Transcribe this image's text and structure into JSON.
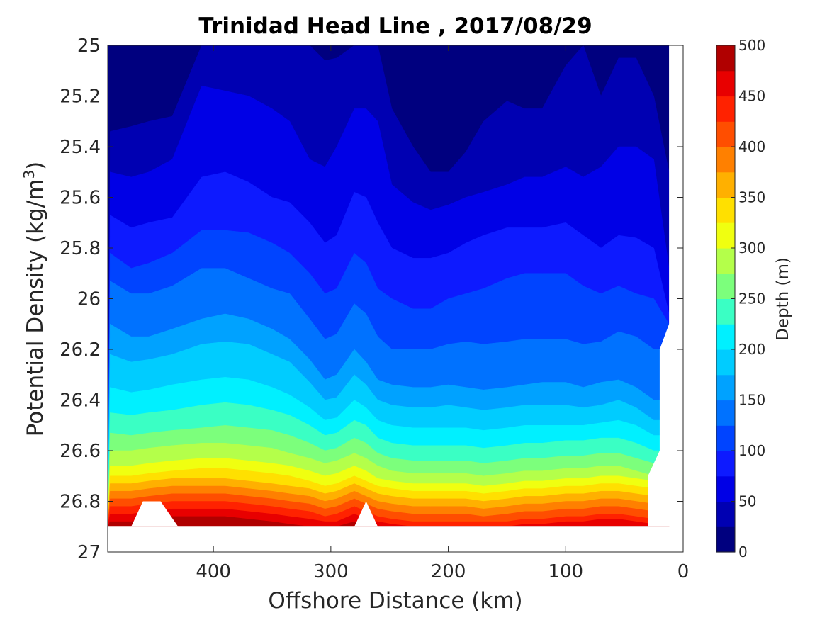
{
  "chart_data": {
    "type": "contourf",
    "title": "Trinidad Head Line , 2017/08/29",
    "xlabel": "Offshore Distance (km)",
    "ylabel_main": "Potential Density (kg/m",
    "ylabel_sup": "3",
    "ylabel_close": ")",
    "colorbar_label": "Depth (m)",
    "x_reversed": true,
    "y_reversed": true,
    "xlim": [
      0,
      490
    ],
    "ylim": [
      25,
      27
    ],
    "x_ticks": [
      400,
      300,
      200,
      100,
      0
    ],
    "x_tick_labels": [
      "400",
      "300",
      "200",
      "100",
      "0"
    ],
    "y_ticks": [
      25,
      25.2,
      25.4,
      25.6,
      25.8,
      26,
      26.2,
      26.4,
      26.6,
      26.8,
      27
    ],
    "y_tick_labels": [
      "25",
      "25.2",
      "25.4",
      "25.6",
      "25.8",
      "26",
      "26.2",
      "26.4",
      "26.6",
      "26.8",
      "27"
    ],
    "colorbar_ticks": [
      0,
      50,
      100,
      150,
      200,
      250,
      300,
      350,
      400,
      450,
      500
    ],
    "colorbar_tick_labels": [
      "0",
      "50",
      "100",
      "150",
      "200",
      "250",
      "300",
      "350",
      "400",
      "450",
      "500"
    ],
    "levels": [
      0,
      25,
      50,
      75,
      100,
      125,
      150,
      175,
      200,
      225,
      250,
      275,
      300,
      325,
      350,
      375,
      400,
      425,
      450,
      475,
      500
    ],
    "level_colors": [
      "#00007f",
      "#0000b2",
      "#0000e6",
      "#0d1aff",
      "#0044ff",
      "#0072ff",
      "#00a2ff",
      "#00ccff",
      "#00f0ff",
      "#3affc4",
      "#7cff7c",
      "#b4ff4a",
      "#f0ff10",
      "#ffe000",
      "#ffb000",
      "#ff8000",
      "#ff4e00",
      "#ff2200",
      "#e80000",
      "#b00000"
    ],
    "x": [
      488,
      470,
      455,
      435,
      410,
      390,
      370,
      350,
      335,
      318,
      305,
      295,
      280,
      270,
      260,
      248,
      230,
      215,
      200,
      185,
      170,
      150,
      135,
      120,
      100,
      85,
      70,
      55,
      40,
      25,
      12
    ],
    "isopycnal_depth_contours": [
      {
        "level": 25,
        "sigma": [
          25.34,
          25.32,
          25.3,
          25.28,
          25.0,
          25.0,
          25.0,
          25.0,
          25.0,
          25.0,
          25.06,
          25.05,
          25.0,
          25.0,
          25.0,
          25.25,
          25.4,
          25.5,
          25.5,
          25.42,
          25.3,
          25.22,
          25.25,
          25.25,
          25.08,
          25.0,
          25.2,
          25.05,
          25.05,
          25.2,
          25.5
        ]
      },
      {
        "level": 50,
        "sigma": [
          25.5,
          25.52,
          25.5,
          25.45,
          25.16,
          25.18,
          25.2,
          25.25,
          25.3,
          25.45,
          25.48,
          25.4,
          25.25,
          25.25,
          25.3,
          25.55,
          25.62,
          25.65,
          25.63,
          25.6,
          25.58,
          25.55,
          25.52,
          25.52,
          25.48,
          25.52,
          25.48,
          25.4,
          25.4,
          25.45,
          25.88
        ]
      },
      {
        "level": 75,
        "sigma": [
          25.67,
          25.72,
          25.7,
          25.68,
          25.52,
          25.5,
          25.54,
          25.6,
          25.62,
          25.7,
          25.78,
          25.75,
          25.58,
          25.6,
          25.7,
          25.8,
          25.84,
          25.84,
          25.82,
          25.78,
          25.75,
          25.72,
          25.72,
          25.72,
          25.7,
          25.75,
          25.8,
          25.75,
          25.76,
          25.8,
          26.06
        ]
      },
      {
        "level": 100,
        "sigma": [
          25.82,
          25.88,
          25.86,
          25.82,
          25.73,
          25.73,
          25.74,
          25.78,
          25.82,
          25.9,
          25.98,
          25.96,
          25.82,
          25.86,
          25.96,
          26.0,
          26.04,
          26.04,
          26.0,
          25.98,
          25.96,
          25.92,
          25.9,
          25.9,
          25.9,
          25.95,
          25.98,
          25.95,
          25.98,
          26.0,
          26.1
        ]
      },
      {
        "level": 125,
        "sigma": [
          25.93,
          25.98,
          25.98,
          25.95,
          25.88,
          25.88,
          25.92,
          25.96,
          25.98,
          26.08,
          26.16,
          26.14,
          26.02,
          26.06,
          26.15,
          26.2,
          26.2,
          26.2,
          26.18,
          26.17,
          26.18,
          26.17,
          26.16,
          26.16,
          26.16,
          26.18,
          26.17,
          26.13,
          26.15,
          26.2,
          26.2
        ]
      },
      {
        "level": 150,
        "sigma": [
          26.1,
          26.15,
          26.15,
          26.12,
          26.08,
          26.06,
          26.08,
          26.12,
          26.16,
          26.24,
          26.32,
          26.3,
          26.2,
          26.25,
          26.32,
          26.34,
          26.35,
          26.35,
          26.34,
          26.35,
          26.36,
          26.35,
          26.34,
          26.33,
          26.33,
          26.35,
          26.33,
          26.32,
          26.35,
          26.4,
          26.4
        ]
      },
      {
        "level": 175,
        "sigma": [
          26.22,
          26.25,
          26.24,
          26.22,
          26.18,
          26.17,
          26.18,
          26.22,
          26.25,
          26.33,
          26.4,
          26.39,
          26.3,
          26.34,
          26.4,
          26.42,
          26.43,
          26.43,
          26.42,
          26.43,
          26.44,
          26.43,
          26.42,
          26.42,
          26.42,
          26.43,
          26.42,
          26.4,
          26.43,
          26.48,
          26.48
        ]
      },
      {
        "level": 200,
        "sigma": [
          26.35,
          26.37,
          26.36,
          26.34,
          26.32,
          26.31,
          26.32,
          26.35,
          26.38,
          26.43,
          26.48,
          26.47,
          26.4,
          26.43,
          26.48,
          26.5,
          26.51,
          26.51,
          26.51,
          26.51,
          26.52,
          26.51,
          26.5,
          26.5,
          26.5,
          26.5,
          26.49,
          26.48,
          26.5,
          26.54,
          26.54
        ]
      },
      {
        "level": 225,
        "sigma": [
          26.45,
          26.46,
          26.45,
          26.44,
          26.42,
          26.41,
          26.42,
          26.44,
          26.46,
          26.5,
          26.54,
          26.53,
          26.48,
          26.5,
          26.55,
          26.57,
          26.58,
          26.58,
          26.58,
          26.58,
          26.59,
          26.58,
          26.57,
          26.57,
          26.56,
          26.56,
          26.55,
          26.55,
          26.57,
          26.6,
          26.6
        ]
      },
      {
        "level": 250,
        "sigma": [
          26.53,
          26.54,
          26.53,
          26.52,
          26.51,
          26.5,
          26.51,
          26.52,
          26.54,
          26.57,
          26.6,
          26.59,
          26.55,
          26.57,
          26.61,
          26.63,
          26.64,
          26.64,
          26.64,
          26.64,
          26.65,
          26.64,
          26.63,
          26.63,
          26.62,
          26.62,
          26.61,
          26.61,
          26.63,
          26.65,
          26.65
        ]
      },
      {
        "level": 275,
        "sigma": [
          26.6,
          26.6,
          26.59,
          26.58,
          26.57,
          26.57,
          26.58,
          26.59,
          26.61,
          26.63,
          26.65,
          26.64,
          26.61,
          26.63,
          26.66,
          26.68,
          26.69,
          26.69,
          26.69,
          26.69,
          26.7,
          26.69,
          26.68,
          26.68,
          26.67,
          26.67,
          26.66,
          26.66,
          26.68,
          26.7,
          26.7
        ]
      },
      {
        "level": 300,
        "sigma": [
          26.66,
          26.66,
          26.65,
          26.64,
          26.63,
          26.63,
          26.64,
          26.65,
          26.66,
          26.68,
          26.7,
          26.69,
          26.66,
          26.68,
          26.71,
          26.72,
          26.73,
          26.73,
          26.73,
          26.73,
          26.74,
          26.73,
          26.72,
          26.72,
          26.71,
          26.71,
          26.7,
          26.7,
          26.71,
          26.72,
          26.72
        ]
      },
      {
        "level": 325,
        "sigma": [
          26.7,
          26.7,
          26.69,
          26.68,
          26.67,
          26.67,
          26.68,
          26.69,
          26.7,
          26.72,
          26.74,
          26.73,
          26.7,
          26.72,
          26.74,
          26.75,
          26.76,
          26.76,
          26.76,
          26.76,
          26.77,
          26.76,
          26.75,
          26.75,
          26.74,
          26.74,
          26.73,
          26.73,
          26.74,
          26.75,
          26.75
        ]
      },
      {
        "level": 350,
        "sigma": [
          26.73,
          26.73,
          26.72,
          26.71,
          26.71,
          26.71,
          26.72,
          26.73,
          26.74,
          26.75,
          26.77,
          26.76,
          26.73,
          26.75,
          26.77,
          26.78,
          26.79,
          26.79,
          26.79,
          26.79,
          26.8,
          26.79,
          26.78,
          26.78,
          26.77,
          26.77,
          26.76,
          26.76,
          26.77,
          26.78,
          26.78
        ]
      },
      {
        "level": 375,
        "sigma": [
          26.76,
          26.76,
          26.75,
          26.74,
          26.74,
          26.74,
          26.75,
          26.76,
          26.77,
          26.78,
          26.8,
          26.79,
          26.76,
          26.78,
          26.8,
          26.81,
          26.82,
          26.82,
          26.82,
          26.82,
          26.83,
          26.82,
          26.81,
          26.81,
          26.8,
          26.8,
          26.79,
          26.79,
          26.8,
          26.81,
          26.81
        ]
      },
      {
        "level": 400,
        "sigma": [
          26.79,
          26.79,
          26.78,
          26.77,
          26.77,
          26.77,
          26.78,
          26.79,
          26.8,
          26.81,
          26.83,
          26.82,
          26.79,
          26.81,
          26.83,
          26.84,
          26.85,
          26.85,
          26.85,
          26.85,
          26.86,
          26.85,
          26.84,
          26.84,
          26.83,
          26.83,
          26.82,
          26.82,
          26.83,
          26.84,
          26.84
        ]
      },
      {
        "level": 425,
        "sigma": [
          26.82,
          26.82,
          26.81,
          26.8,
          26.8,
          26.8,
          26.81,
          26.82,
          26.83,
          26.84,
          26.86,
          26.85,
          26.82,
          26.84,
          26.86,
          26.87,
          26.88,
          26.88,
          26.88,
          26.88,
          26.88,
          26.88,
          26.87,
          26.87,
          26.86,
          26.86,
          26.85,
          26.85,
          26.86,
          26.87,
          26.87
        ]
      },
      {
        "level": 450,
        "sigma": [
          26.85,
          26.85,
          26.84,
          26.83,
          26.83,
          26.83,
          26.84,
          26.85,
          26.86,
          26.87,
          26.88,
          26.88,
          26.85,
          26.87,
          26.88,
          26.89,
          26.9,
          26.9,
          26.9,
          26.9,
          26.9,
          26.9,
          26.89,
          26.89,
          26.88,
          26.88,
          26.87,
          26.87,
          26.88,
          26.89,
          26.89
        ]
      },
      {
        "level": 475,
        "sigma": [
          26.88,
          26.88,
          26.87,
          26.86,
          26.86,
          26.86,
          26.87,
          26.88,
          26.89,
          26.9,
          26.9,
          26.9,
          26.88,
          26.9,
          26.9,
          26.9,
          26.9,
          26.9,
          26.9,
          26.9,
          26.9,
          26.9,
          26.9,
          26.9,
          26.9,
          26.9,
          26.9,
          26.9,
          26.9,
          26.9,
          26.9
        ]
      }
    ],
    "data_extent": {
      "x_min": 12,
      "x_max": 490,
      "sigma_max": 26.9,
      "x_sigma_max_nearshore": 30,
      "nearshore_edge": [
        [
          12,
          26.1
        ],
        [
          20,
          26.2
        ],
        [
          20,
          26.6
        ],
        [
          30,
          26.7
        ]
      ]
    },
    "white_gaps": [
      {
        "x": [
          470,
          460,
          445,
          430
        ],
        "sigma": [
          26.9,
          26.8,
          26.8,
          26.9
        ]
      },
      {
        "x": [
          280,
          270,
          260
        ],
        "sigma": [
          26.9,
          26.8,
          26.9
        ]
      }
    ]
  }
}
